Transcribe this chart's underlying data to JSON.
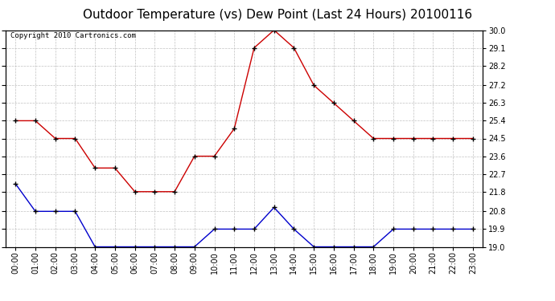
{
  "title": "Outdoor Temperature (vs) Dew Point (Last 24 Hours) 20100116",
  "copyright": "Copyright 2010 Cartronics.com",
  "x_labels": [
    "00:00",
    "01:00",
    "02:00",
    "03:00",
    "04:00",
    "05:00",
    "06:00",
    "07:00",
    "08:00",
    "09:00",
    "10:00",
    "11:00",
    "12:00",
    "13:00",
    "14:00",
    "15:00",
    "16:00",
    "17:00",
    "18:00",
    "19:00",
    "20:00",
    "21:00",
    "22:00",
    "23:00"
  ],
  "temp_values": [
    25.4,
    25.4,
    24.5,
    24.5,
    23.0,
    23.0,
    21.8,
    21.8,
    21.8,
    23.6,
    23.6,
    25.0,
    29.1,
    30.0,
    29.1,
    27.2,
    26.3,
    25.4,
    24.5,
    24.5,
    24.5,
    24.5,
    24.5,
    24.5
  ],
  "dew_values": [
    22.2,
    20.8,
    20.8,
    20.8,
    19.0,
    19.0,
    19.0,
    19.0,
    19.0,
    19.0,
    19.9,
    19.9,
    19.9,
    21.0,
    19.9,
    19.0,
    19.0,
    19.0,
    19.0,
    19.9,
    19.9,
    19.9,
    19.9,
    19.9
  ],
  "temp_color": "#cc0000",
  "dew_color": "#0000cc",
  "ylim_min": 19.0,
  "ylim_max": 30.0,
  "yticks": [
    19.0,
    19.9,
    20.8,
    21.8,
    22.7,
    23.6,
    24.5,
    25.4,
    26.3,
    27.2,
    28.2,
    29.1,
    30.0
  ],
  "background_color": "#ffffff",
  "plot_bg_color": "#ffffff",
  "grid_color": "#bbbbbb",
  "title_fontsize": 11,
  "copyright_fontsize": 6.5,
  "tick_fontsize": 7
}
